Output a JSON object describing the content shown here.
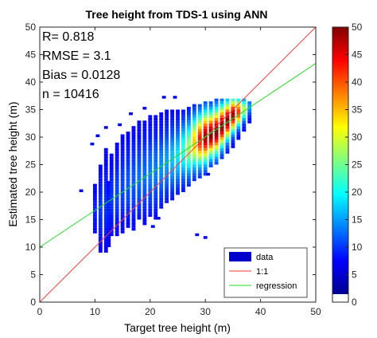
{
  "chart_data": {
    "type": "heatmap",
    "title": "Tree height from TDS-1 using ANN",
    "xlabel": "Target tree height (m)",
    "ylabel": "Estimated tree height (m)",
    "xlim": [
      0,
      50
    ],
    "ylim": [
      0,
      50
    ],
    "xticks": [
      "0",
      "10",
      "20",
      "30",
      "40",
      "50"
    ],
    "yticks": [
      "0",
      "5",
      "10",
      "15",
      "20",
      "25",
      "30",
      "35",
      "40",
      "45",
      "50"
    ],
    "stats": [
      {
        "label": "R= 0.818"
      },
      {
        "label": "RMSE = 3.1"
      },
      {
        "label": "Bias = 0.0128"
      },
      {
        "label": "n = 10416"
      }
    ],
    "colorbar": {
      "range": [
        0,
        50
      ],
      "ticks": [
        "0",
        "5",
        "10",
        "15",
        "20",
        "25",
        "30",
        "35",
        "40",
        "45",
        "50"
      ],
      "colormap": "jet"
    },
    "legend": {
      "placement": "bottom-right",
      "items": [
        {
          "label": "data",
          "color": "#0000cc",
          "kind": "patch"
        },
        {
          "label": "1:1",
          "color": "#ff3b3b",
          "kind": "line"
        },
        {
          "label": "regression",
          "color": "#22dd22",
          "kind": "line"
        }
      ]
    },
    "lines": [
      {
        "name": "1:1",
        "color": "#ff3b3b",
        "points": [
          [
            0,
            0
          ],
          [
            50,
            50
          ]
        ]
      },
      {
        "name": "regression",
        "color": "#22dd22",
        "points": [
          [
            0,
            10
          ],
          [
            50,
            43.4
          ]
        ]
      }
    ],
    "density": {
      "bin_width": 0.5,
      "columns": [
        {
          "x": 10.0,
          "ymin": 12.5,
          "ymax": 21.5,
          "peak": 3,
          "center": 16.5
        },
        {
          "x": 11.0,
          "ymin": 9.0,
          "ymax": 25.0,
          "peak": 4,
          "center": 17.0
        },
        {
          "x": 12.0,
          "ymin": 9.0,
          "ymax": 28.0,
          "peak": 4,
          "center": 18.0
        },
        {
          "x": 12.5,
          "ymin": 10.0,
          "ymax": 22.0,
          "peak": 3,
          "center": 17.0
        },
        {
          "x": 13.0,
          "ymin": 12.0,
          "ymax": 27.0,
          "peak": 4,
          "center": 19.0
        },
        {
          "x": 14.0,
          "ymin": 12.0,
          "ymax": 29.0,
          "peak": 5,
          "center": 20.0
        },
        {
          "x": 15.0,
          "ymin": 12.5,
          "ymax": 30.5,
          "peak": 5,
          "center": 21.0
        },
        {
          "x": 16.0,
          "ymin": 13.5,
          "ymax": 31.0,
          "peak": 6,
          "center": 21.5
        },
        {
          "x": 17.0,
          "ymin": 13.0,
          "ymax": 32.0,
          "peak": 6,
          "center": 22.0
        },
        {
          "x": 18.0,
          "ymin": 15.0,
          "ymax": 33.0,
          "peak": 7,
          "center": 22.5
        },
        {
          "x": 19.0,
          "ymin": 14.0,
          "ymax": 33.0,
          "peak": 7,
          "center": 23.0
        },
        {
          "x": 20.0,
          "ymin": 15.5,
          "ymax": 34.0,
          "peak": 8,
          "center": 23.5
        },
        {
          "x": 21.0,
          "ymin": 15.0,
          "ymax": 34.0,
          "peak": 8,
          "center": 24.0
        },
        {
          "x": 22.0,
          "ymin": 17.0,
          "ymax": 34.5,
          "peak": 9,
          "center": 24.5
        },
        {
          "x": 23.0,
          "ymin": 18.0,
          "ymax": 35.0,
          "peak": 10,
          "center": 25.5
        },
        {
          "x": 24.0,
          "ymin": 18.5,
          "ymax": 35.0,
          "peak": 12,
          "center": 26.0
        },
        {
          "x": 25.0,
          "ymin": 19.5,
          "ymax": 35.0,
          "peak": 14,
          "center": 26.5
        },
        {
          "x": 26.0,
          "ymin": 20.0,
          "ymax": 35.0,
          "peak": 18,
          "center": 27.5
        },
        {
          "x": 27.0,
          "ymin": 21.0,
          "ymax": 35.5,
          "peak": 24,
          "center": 28.0
        },
        {
          "x": 28.0,
          "ymin": 22.0,
          "ymax": 36.0,
          "peak": 32,
          "center": 29.0
        },
        {
          "x": 29.0,
          "ymin": 22.5,
          "ymax": 36.0,
          "peak": 42,
          "center": 29.5
        },
        {
          "x": 30.0,
          "ymin": 23.0,
          "ymax": 36.5,
          "peak": 48,
          "center": 30.0
        },
        {
          "x": 31.0,
          "ymin": 24.5,
          "ymax": 36.5,
          "peak": 50,
          "center": 30.5
        },
        {
          "x": 32.0,
          "ymin": 25.0,
          "ymax": 37.0,
          "peak": 50,
          "center": 31.0
        },
        {
          "x": 33.0,
          "ymin": 26.0,
          "ymax": 37.0,
          "peak": 50,
          "center": 32.0
        },
        {
          "x": 34.0,
          "ymin": 27.0,
          "ymax": 37.0,
          "peak": 50,
          "center": 33.0
        },
        {
          "x": 35.0,
          "ymin": 28.0,
          "ymax": 37.0,
          "peak": 48,
          "center": 34.0
        },
        {
          "x": 36.0,
          "ymin": 29.5,
          "ymax": 37.0,
          "peak": 40,
          "center": 34.5
        },
        {
          "x": 37.0,
          "ymin": 31.0,
          "ymax": 37.0,
          "peak": 25,
          "center": 35.0
        },
        {
          "x": 38.0,
          "ymin": 32.5,
          "ymax": 36.5,
          "peak": 10,
          "center": 35.5
        }
      ],
      "outliers": [
        [
          7.5,
          20.0
        ],
        [
          9.5,
          28.5
        ],
        [
          10.5,
          30.0
        ],
        [
          12.0,
          31.5
        ],
        [
          14.5,
          32.0
        ],
        [
          16.5,
          34.0
        ],
        [
          19.0,
          35.0
        ],
        [
          22.5,
          37.0
        ],
        [
          24.5,
          37.0
        ],
        [
          28.5,
          12.0
        ],
        [
          30.5,
          23.0
        ],
        [
          30.0,
          11.5
        ],
        [
          20.5,
          13.5
        ],
        [
          21.5,
          15.0
        ]
      ]
    }
  }
}
